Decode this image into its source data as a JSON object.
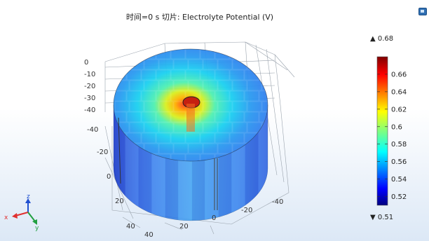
{
  "title": "时间=0 s   切片: Electrolyte Potential (V)",
  "chart_data": {
    "type": "heatmap",
    "title": "时间=0 s   切片: Electrolyte Potential (V)",
    "quantity": "Electrolyte Potential (V)",
    "time_label": "时间=0 s",
    "colormap": "rainbow",
    "color_range": {
      "min": 0.51,
      "max": 0.68
    },
    "max_label": "▲ 0.68",
    "min_label": "▼ 0.51",
    "colorbar_ticks": [
      0.52,
      0.54,
      0.56,
      0.58,
      0.6,
      0.62,
      0.64,
      0.66
    ],
    "colorbar_tick_labels": [
      "0.52",
      "0.54",
      "0.56",
      "0.58",
      "0.6",
      "0.62",
      "0.64",
      "0.66"
    ],
    "axes": {
      "z_ticks": [
        "0",
        "-10",
        "-20",
        "-30",
        "-40"
      ],
      "y_ticks": [
        "-40",
        "-20",
        "0",
        "20",
        "40"
      ],
      "x_ticks": [
        "40",
        "20",
        "0",
        "-20",
        "-40"
      ]
    },
    "triad_labels": {
      "x": "x",
      "y": "y",
      "z": "z"
    },
    "grid": true
  },
  "colors": {
    "cb_low": "#00007f",
    "cb_mid": "#7fff7f",
    "cb_high": "#7f0000",
    "triad_x": "#e03030",
    "triad_y": "#20a040",
    "triad_z": "#2050d0",
    "export_icon": "#2f6fb3"
  },
  "icons": {
    "export": "export-image-icon"
  }
}
